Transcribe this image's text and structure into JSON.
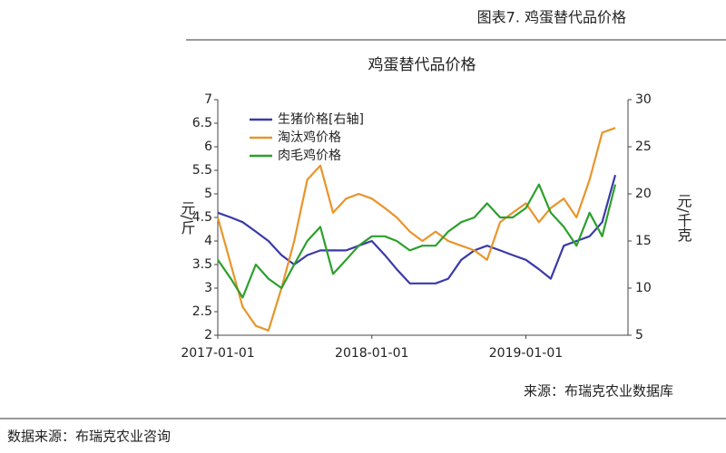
{
  "header": {
    "title": "图表7.    鸡蛋替代品价格"
  },
  "chart_data": {
    "type": "line",
    "title": "鸡蛋替代品价格",
    "y_label": "元/斤",
    "y2_label": "元/千克",
    "x": [
      "2017-01-01",
      "2017-02-01",
      "2017-03-01",
      "2017-04-01",
      "2017-05-01",
      "2017-06-01",
      "2017-07-01",
      "2017-08-01",
      "2017-09-01",
      "2017-10-01",
      "2017-11-01",
      "2017-12-01",
      "2018-01-01",
      "2018-02-01",
      "2018-03-01",
      "2018-04-01",
      "2018-05-01",
      "2018-06-01",
      "2018-07-01",
      "2018-08-01",
      "2018-09-01",
      "2018-10-01",
      "2018-11-01",
      "2018-12-01",
      "2019-01-01",
      "2019-02-01",
      "2019-03-01",
      "2019-04-01",
      "2019-05-01",
      "2019-06-01",
      "2019-07-01",
      "2019-08-01"
    ],
    "xlim": [
      "2017-01-01",
      "2019-08-31"
    ],
    "xticks": [
      "2017-01-01",
      "2018-01-01",
      "2019-01-01"
    ],
    "ylim": [
      2,
      7
    ],
    "yticks": [
      2,
      2.5,
      3,
      3.5,
      4,
      4.5,
      5,
      5.5,
      6,
      6.5,
      7
    ],
    "y2lim": [
      5,
      30
    ],
    "y2ticks": [
      5,
      10,
      15,
      20,
      25,
      30
    ],
    "grid": false,
    "legend": "upper left",
    "series": [
      {
        "name": "生猪价格[右轴]",
        "color": "#3a3aa8",
        "axis": "y2",
        "values": [
          18,
          17.5,
          17,
          16,
          15,
          13.5,
          12.5,
          13.5,
          14,
          14,
          14,
          14.5,
          15,
          13.5,
          12,
          10.5,
          10.5,
          10.5,
          11,
          13,
          14,
          14.5,
          14,
          13.5,
          13,
          12,
          11,
          14.5,
          15,
          15.5,
          17,
          22
        ]
      },
      {
        "name": "淘汰鸡价格",
        "color": "#e8952a",
        "values": [
          4.5,
          3.5,
          2.6,
          2.2,
          2.1,
          3.0,
          4.0,
          5.3,
          5.6,
          4.6,
          4.9,
          5.0,
          4.9,
          4.7,
          4.5,
          4.2,
          4.0,
          4.2,
          4.0,
          3.9,
          3.8,
          3.6,
          4.4,
          4.6,
          4.8,
          4.4,
          4.7,
          4.9,
          4.5,
          5.3,
          6.3,
          6.4
        ]
      },
      {
        "name": "肉毛鸡价格",
        "color": "#2ca02c",
        "values": [
          3.6,
          3.2,
          2.8,
          3.5,
          3.2,
          3.0,
          3.5,
          4.0,
          4.3,
          3.3,
          3.6,
          3.9,
          4.1,
          4.1,
          4.0,
          3.8,
          3.9,
          3.9,
          4.2,
          4.4,
          4.5,
          4.8,
          4.5,
          4.5,
          4.7,
          5.2,
          4.6,
          4.3,
          3.9,
          4.6,
          4.1,
          5.2
        ]
      }
    ],
    "source": "来源：布瑞克农业数据库"
  },
  "footer": {
    "note": "数据来源：布瑞克农业咨询"
  }
}
